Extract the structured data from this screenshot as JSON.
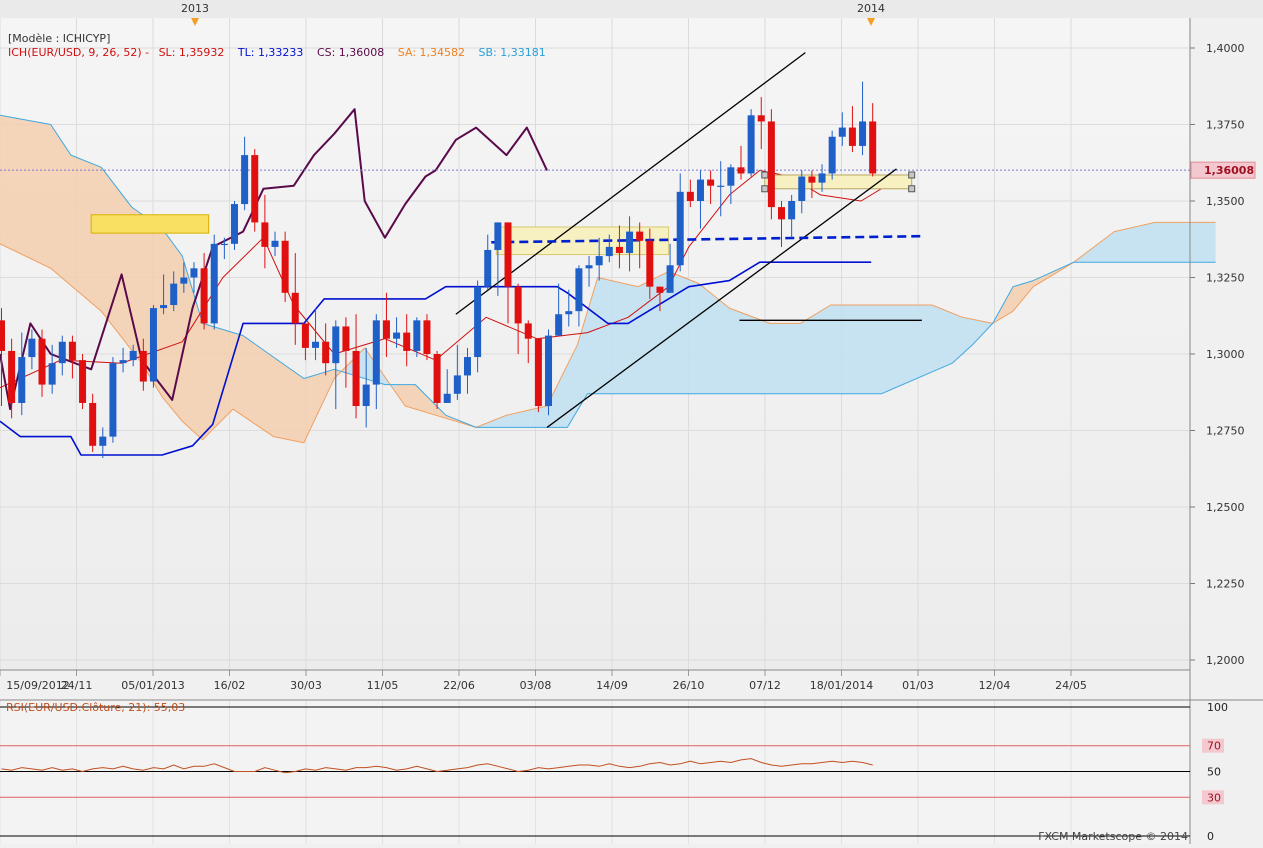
{
  "header": {
    "model_label": "[Modèle : ICHICYP]",
    "ich_label": "ICH(EUR/USD, 9, 26, 52) -",
    "sl": "SL: 1,35932",
    "tl": "TL: 1,33233",
    "cs": "CS: 1,36008",
    "sa": "SA: 1,34582",
    "sb": "SB: 1,33181"
  },
  "footer": {
    "copyright": "FXCM Marketscope © 2014"
  },
  "colors": {
    "bull": "#1f5fc8",
    "bear": "#e01010",
    "kijun": "#0010d0",
    "tenkan": "#d01010",
    "chikou": "#5a0a4a",
    "kumo_bear": "#f4cfae",
    "kumo_bull": "#bfe0f2",
    "span_a": "#f0a060",
    "span_b": "#40a8e0",
    "rsi": "#c05020"
  },
  "chart_data": {
    "type": "candlestick",
    "symbol": "EUR/USD",
    "timeframe": "weekly",
    "year_markers": [
      "2013",
      "2014"
    ],
    "x_ticks": [
      "15/09/2012",
      "24/11",
      "05/01/2013",
      "16/02",
      "30/03",
      "11/05",
      "22/06",
      "03/08",
      "14/09",
      "26/10",
      "07/12",
      "18/01/2014",
      "01/03",
      "12/04",
      "24/05"
    ],
    "y_ticks": [
      "1,4000",
      "1,3750",
      "1,3500",
      "1,3250",
      "1,3000",
      "1,2750",
      "1,2500",
      "1,2250",
      "1,2000"
    ],
    "ylim": [
      1.2,
      1.4
    ],
    "current_price_label": "1,36008",
    "current_price": 1.36008,
    "candles": [
      [
        1.311,
        1.301,
        1.315,
        1.283
      ],
      [
        1.301,
        1.284,
        1.305,
        1.279
      ],
      [
        1.284,
        1.299,
        1.307,
        1.28
      ],
      [
        1.299,
        1.305,
        1.308,
        1.295
      ],
      [
        1.305,
        1.29,
        1.308,
        1.286
      ],
      [
        1.29,
        1.297,
        1.303,
        1.287
      ],
      [
        1.297,
        1.304,
        1.306,
        1.293
      ],
      [
        1.304,
        1.298,
        1.306,
        1.292
      ],
      [
        1.298,
        1.284,
        1.3,
        1.282
      ],
      [
        1.284,
        1.27,
        1.287,
        1.268
      ],
      [
        1.27,
        1.273,
        1.276,
        1.266
      ],
      [
        1.273,
        1.297,
        1.299,
        1.271
      ],
      [
        1.297,
        1.298,
        1.302,
        1.294
      ],
      [
        1.298,
        1.301,
        1.303,
        1.296
      ],
      [
        1.301,
        1.291,
        1.305,
        1.288
      ],
      [
        1.291,
        1.315,
        1.316,
        1.289
      ],
      [
        1.315,
        1.316,
        1.326,
        1.313
      ],
      [
        1.316,
        1.323,
        1.327,
        1.314
      ],
      [
        1.323,
        1.325,
        1.33,
        1.32
      ],
      [
        1.325,
        1.328,
        1.33,
        1.32
      ],
      [
        1.328,
        1.31,
        1.333,
        1.308
      ],
      [
        1.31,
        1.336,
        1.339,
        1.308
      ],
      [
        1.336,
        1.336,
        1.338,
        1.331
      ],
      [
        1.336,
        1.349,
        1.35,
        1.334
      ],
      [
        1.349,
        1.365,
        1.371,
        1.347
      ],
      [
        1.365,
        1.343,
        1.367,
        1.34
      ],
      [
        1.343,
        1.335,
        1.352,
        1.328
      ],
      [
        1.335,
        1.337,
        1.34,
        1.332
      ],
      [
        1.337,
        1.32,
        1.34,
        1.317
      ],
      [
        1.32,
        1.31,
        1.333,
        1.303
      ],
      [
        1.31,
        1.302,
        1.31,
        1.298
      ],
      [
        1.302,
        1.304,
        1.315,
        1.298
      ],
      [
        1.304,
        1.297,
        1.31,
        1.293
      ],
      [
        1.297,
        1.309,
        1.311,
        1.282
      ],
      [
        1.309,
        1.301,
        1.312,
        1.289
      ],
      [
        1.301,
        1.283,
        1.313,
        1.279
      ],
      [
        1.283,
        1.29,
        1.302,
        1.276
      ],
      [
        1.29,
        1.311,
        1.313,
        1.282
      ],
      [
        1.311,
        1.305,
        1.32,
        1.299
      ],
      [
        1.305,
        1.307,
        1.312,
        1.302
      ],
      [
        1.307,
        1.301,
        1.313,
        1.296
      ],
      [
        1.301,
        1.311,
        1.312,
        1.299
      ],
      [
        1.311,
        1.3,
        1.313,
        1.298
      ],
      [
        1.3,
        1.284,
        1.301,
        1.282
      ],
      [
        1.284,
        1.287,
        1.295,
        1.284
      ],
      [
        1.287,
        1.293,
        1.303,
        1.285
      ],
      [
        1.293,
        1.299,
        1.302,
        1.287
      ],
      [
        1.299,
        1.322,
        1.324,
        1.294
      ],
      [
        1.322,
        1.334,
        1.339,
        1.321
      ],
      [
        1.334,
        1.343,
        1.343,
        1.319
      ],
      [
        1.343,
        1.322,
        1.343,
        1.31
      ],
      [
        1.322,
        1.31,
        1.323,
        1.3
      ],
      [
        1.31,
        1.305,
        1.311,
        1.297
      ],
      [
        1.305,
        1.283,
        1.305,
        1.281
      ],
      [
        1.283,
        1.306,
        1.308,
        1.28
      ],
      [
        1.306,
        1.313,
        1.323,
        1.306
      ],
      [
        1.313,
        1.314,
        1.321,
        1.309
      ],
      [
        1.314,
        1.328,
        1.329,
        1.309
      ],
      [
        1.328,
        1.329,
        1.332,
        1.322
      ],
      [
        1.329,
        1.332,
        1.338,
        1.324
      ],
      [
        1.332,
        1.335,
        1.339,
        1.33
      ],
      [
        1.335,
        1.333,
        1.342,
        1.328
      ],
      [
        1.333,
        1.34,
        1.345,
        1.327
      ],
      [
        1.34,
        1.337,
        1.343,
        1.328
      ],
      [
        1.337,
        1.322,
        1.341,
        1.318
      ],
      [
        1.322,
        1.32,
        1.322,
        1.314
      ],
      [
        1.32,
        1.329,
        1.336,
        1.32
      ],
      [
        1.329,
        1.353,
        1.359,
        1.327
      ],
      [
        1.353,
        1.35,
        1.357,
        1.348
      ],
      [
        1.35,
        1.357,
        1.36,
        1.341
      ],
      [
        1.357,
        1.355,
        1.36,
        1.349
      ],
      [
        1.355,
        1.355,
        1.363,
        1.345
      ],
      [
        1.355,
        1.361,
        1.362,
        1.349
      ],
      [
        1.361,
        1.359,
        1.368,
        1.357
      ],
      [
        1.359,
        1.378,
        1.38,
        1.358
      ],
      [
        1.378,
        1.376,
        1.384,
        1.367
      ],
      [
        1.376,
        1.348,
        1.38,
        1.344
      ],
      [
        1.348,
        1.344,
        1.35,
        1.335
      ],
      [
        1.344,
        1.35,
        1.352,
        1.338
      ],
      [
        1.35,
        1.358,
        1.36,
        1.346
      ],
      [
        1.358,
        1.356,
        1.36,
        1.351
      ],
      [
        1.356,
        1.359,
        1.362,
        1.353
      ],
      [
        1.359,
        1.371,
        1.373,
        1.357
      ],
      [
        1.371,
        1.374,
        1.379,
        1.368
      ],
      [
        1.374,
        1.368,
        1.381,
        1.366
      ],
      [
        1.368,
        1.376,
        1.389,
        1.365
      ],
      [
        1.376,
        1.359,
        1.382,
        1.358
      ]
    ],
    "tenkan": [
      [
        0,
        1.289
      ],
      [
        6,
        1.298
      ],
      [
        12,
        1.297
      ],
      [
        18,
        1.304
      ],
      [
        22,
        1.325
      ],
      [
        26,
        1.338
      ],
      [
        29,
        1.316
      ],
      [
        33,
        1.3
      ],
      [
        38,
        1.305
      ],
      [
        43,
        1.298
      ],
      [
        48,
        1.312
      ],
      [
        53,
        1.305
      ],
      [
        58,
        1.307
      ],
      [
        62,
        1.312
      ],
      [
        66,
        1.322
      ],
      [
        68,
        1.335
      ],
      [
        72,
        1.352
      ],
      [
        75,
        1.36
      ],
      [
        78,
        1.358
      ],
      [
        81,
        1.352
      ],
      [
        85,
        1.35
      ],
      [
        88,
        1.356
      ]
    ],
    "kijun": [
      [
        0,
        1.278
      ],
      [
        2,
        1.273
      ],
      [
        7,
        1.273
      ],
      [
        8,
        1.267
      ],
      [
        16,
        1.267
      ],
      [
        19,
        1.27
      ],
      [
        21,
        1.277
      ],
      [
        24,
        1.31
      ],
      [
        30,
        1.31
      ],
      [
        32,
        1.318
      ],
      [
        42,
        1.318
      ],
      [
        44,
        1.322
      ],
      [
        55,
        1.322
      ],
      [
        56,
        1.32
      ],
      [
        60,
        1.31
      ],
      [
        62,
        1.31
      ],
      [
        68,
        1.322
      ],
      [
        72,
        1.324
      ],
      [
        75,
        1.33
      ],
      [
        77,
        1.33
      ],
      [
        86,
        1.33
      ]
    ],
    "chikou": [
      [
        0,
        1.3
      ],
      [
        1,
        1.282
      ],
      [
        3,
        1.31
      ],
      [
        5,
        1.3
      ],
      [
        9,
        1.295
      ],
      [
        12,
        1.326
      ],
      [
        14,
        1.298
      ],
      [
        17,
        1.285
      ],
      [
        19,
        1.315
      ],
      [
        21,
        1.335
      ],
      [
        24,
        1.34
      ],
      [
        26,
        1.354
      ],
      [
        29,
        1.355
      ],
      [
        31,
        1.365
      ],
      [
        33,
        1.372
      ],
      [
        35,
        1.38
      ],
      [
        36,
        1.35
      ],
      [
        38,
        1.338
      ],
      [
        40,
        1.349
      ],
      [
        42,
        1.358
      ],
      [
        43,
        1.36
      ],
      [
        45,
        1.37
      ],
      [
        47,
        1.374
      ],
      [
        50,
        1.365
      ],
      [
        52,
        1.374
      ],
      [
        54,
        1.36
      ]
    ],
    "span_a": [
      [
        0,
        1.336
      ],
      [
        5,
        1.328
      ],
      [
        10,
        1.314
      ],
      [
        14,
        1.297
      ],
      [
        16,
        1.286
      ],
      [
        18,
        1.278
      ],
      [
        20,
        1.272
      ],
      [
        23,
        1.282
      ],
      [
        27,
        1.273
      ],
      [
        30,
        1.271
      ],
      [
        33,
        1.292
      ],
      [
        36,
        1.302
      ],
      [
        40,
        1.283
      ],
      [
        43,
        1.28
      ],
      [
        47,
        1.276
      ],
      [
        50,
        1.28
      ],
      [
        54,
        1.283
      ],
      [
        57,
        1.303
      ],
      [
        59,
        1.325
      ],
      [
        63,
        1.322
      ],
      [
        66,
        1.327
      ],
      [
        69,
        1.323
      ],
      [
        72,
        1.315
      ],
      [
        76,
        1.31
      ],
      [
        79,
        1.31
      ],
      [
        82,
        1.316
      ],
      [
        87,
        1.316
      ],
      [
        92,
        1.316
      ],
      [
        95,
        1.312
      ],
      [
        98,
        1.31
      ],
      [
        100,
        1.314
      ],
      [
        102,
        1.322
      ],
      [
        106,
        1.33
      ],
      [
        110,
        1.34
      ],
      [
        114,
        1.343
      ],
      [
        120,
        1.343
      ]
    ],
    "span_b": [
      [
        0,
        1.378
      ],
      [
        5,
        1.375
      ],
      [
        7,
        1.365
      ],
      [
        10,
        1.361
      ],
      [
        13,
        1.348
      ],
      [
        16,
        1.341
      ],
      [
        18,
        1.332
      ],
      [
        20,
        1.31
      ],
      [
        24,
        1.306
      ],
      [
        27,
        1.299
      ],
      [
        30,
        1.292
      ],
      [
        33,
        1.295
      ],
      [
        38,
        1.29
      ],
      [
        41,
        1.29
      ],
      [
        44,
        1.28
      ],
      [
        47,
        1.276
      ],
      [
        50,
        1.276
      ],
      [
        56,
        1.276
      ],
      [
        58,
        1.287
      ],
      [
        60,
        1.287
      ],
      [
        87,
        1.287
      ],
      [
        94,
        1.297
      ],
      [
        96,
        1.303
      ],
      [
        98,
        1.31
      ],
      [
        100,
        1.322
      ],
      [
        102,
        1.324
      ],
      [
        106,
        1.33
      ],
      [
        110,
        1.33
      ],
      [
        114,
        1.33
      ],
      [
        120,
        1.33
      ]
    ],
    "rsi": {
      "label": "RSI(EUR/USD.Clôture, 21): 55,03",
      "levels": [
        "100",
        "70",
        "50",
        "30",
        "0"
      ],
      "values": [
        52,
        51,
        53,
        52,
        51,
        53,
        51,
        52,
        50,
        52,
        53,
        52,
        54,
        52,
        51,
        53,
        52,
        55,
        52,
        54,
        54,
        56,
        53,
        50,
        50,
        50,
        53,
        51,
        49,
        50,
        52,
        51,
        53,
        52,
        51,
        53,
        53,
        54,
        53,
        51,
        52,
        54,
        52,
        50,
        51,
        52,
        53,
        55,
        56,
        54,
        52,
        50,
        51,
        53,
        52,
        53,
        54,
        55,
        55,
        54,
        56,
        54,
        53,
        54,
        56,
        57,
        55,
        56,
        58,
        56,
        57,
        58,
        57,
        59,
        60,
        57,
        55,
        54,
        55,
        56,
        56,
        57,
        58,
        57,
        58,
        57,
        55
      ]
    }
  }
}
